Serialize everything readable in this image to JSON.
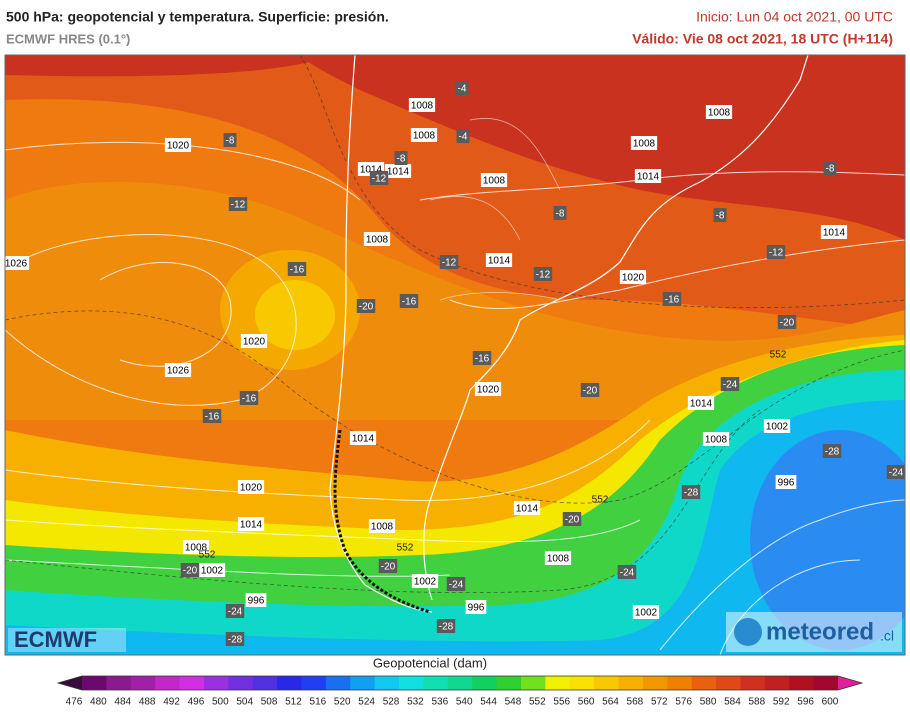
{
  "header": {
    "title": "500 hPa: geopotencial y temperatura. Superficie: presión.",
    "model": "ECMWF HRES (0.1°)",
    "init": "Inicio: Lun 04 oct 2021, 00 UTC",
    "valid": "Válido: Vie 08 oct 2021, 18 UTC (H+114)"
  },
  "map": {
    "pressure_labels": [
      1008,
      1008,
      1008,
      1020,
      1008,
      1014,
      1014,
      1008,
      1014,
      1008,
      1014,
      1026,
      1014,
      1020,
      1020,
      1026,
      1020,
      1014,
      1002,
      1014,
      1008,
      996,
      1020,
      1014,
      1008,
      1014,
      1008,
      1008,
      1002,
      1002,
      996,
      996,
      1002
    ],
    "temperature_labels": [
      -4,
      -4,
      -8,
      -8,
      -12,
      -8,
      -12,
      -8,
      -8,
      -12,
      -16,
      -12,
      -12,
      -16,
      -20,
      -16,
      -20,
      -16,
      -24,
      -16,
      -20,
      -16,
      -28,
      -24,
      -28,
      -20,
      -20,
      -20,
      -24,
      -24,
      -24,
      -28,
      -28
    ],
    "geopotential_labels": [
      552,
      552,
      552,
      552
    ]
  },
  "logos": {
    "left": "ECMWF",
    "right": "meteored",
    "right_suffix": ".cl"
  },
  "colorbar": {
    "title": "Geopotencial (dam)",
    "ticks": [
      476,
      480,
      484,
      488,
      492,
      496,
      500,
      504,
      508,
      512,
      516,
      520,
      524,
      528,
      532,
      536,
      540,
      544,
      548,
      552,
      556,
      560,
      564,
      568,
      572,
      576,
      580,
      584,
      588,
      592,
      596,
      600
    ],
    "colors": [
      "#3a0a3c",
      "#6a0a6e",
      "#8a1a8e",
      "#a020a8",
      "#c028c8",
      "#d030e0",
      "#9a30e0",
      "#7030e0",
      "#5030e0",
      "#2828e8",
      "#2040f0",
      "#1870f0",
      "#10a0f0",
      "#10c8f0",
      "#10e0e0",
      "#10e0b0",
      "#10d890",
      "#10d060",
      "#30d030",
      "#70e020",
      "#f0f000",
      "#f8e000",
      "#f8c800",
      "#f8b000",
      "#f09800",
      "#f08000",
      "#e86010",
      "#e04818",
      "#d03020",
      "#c02020",
      "#b01020",
      "#a00830",
      "#e0209a"
    ]
  }
}
